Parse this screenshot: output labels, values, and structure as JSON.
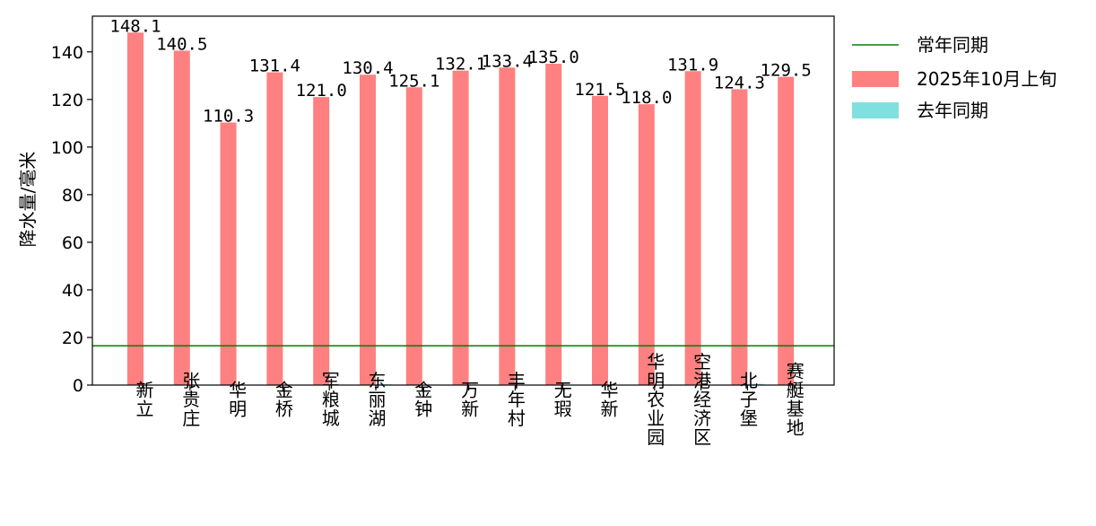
{
  "chart_data": {
    "type": "bar",
    "title": "",
    "xlabel": "",
    "ylabel": "降水量/毫米",
    "ylim": [
      0,
      155
    ],
    "yticks": [
      0,
      20,
      40,
      60,
      80,
      100,
      120,
      140
    ],
    "grid": false,
    "legend_position": "outside-top-right",
    "categories": [
      "新立",
      "张贵庄",
      "华明",
      "金桥",
      "军粮城",
      "东丽湖",
      "金钟",
      "万新",
      "丰年村",
      "无瑕",
      "华新",
      "华明农业园",
      "空港经济区",
      "北子堡",
      "赛艇基地"
    ],
    "series": [
      {
        "name": "2025年10月上旬",
        "color": "#ff8080",
        "values": [
          148.1,
          140.5,
          110.3,
          131.4,
          121.0,
          130.4,
          125.1,
          132.1,
          133.4,
          135.0,
          121.5,
          118.0,
          131.9,
          124.3,
          129.5
        ],
        "labels": [
          "148.1",
          "140.5",
          "110.3",
          "131.4",
          "121.0",
          "130.4",
          "125.1",
          "132.1",
          "133.4",
          "135.0",
          "121.5",
          "118.0",
          "131.9",
          "124.3",
          "129.5"
        ]
      },
      {
        "name": "去年同期",
        "color": "#80e0e0",
        "values": [
          0,
          0,
          0,
          0,
          0,
          0.3,
          0.2,
          0,
          0,
          0,
          0,
          0,
          0,
          0.5,
          0
        ]
      }
    ],
    "reference_lines": [
      {
        "name": "常年同期",
        "color": "#008000",
        "value": 16.5
      }
    ],
    "legend": [
      "常年同期",
      "2025年10月上旬",
      "去年同期"
    ]
  }
}
